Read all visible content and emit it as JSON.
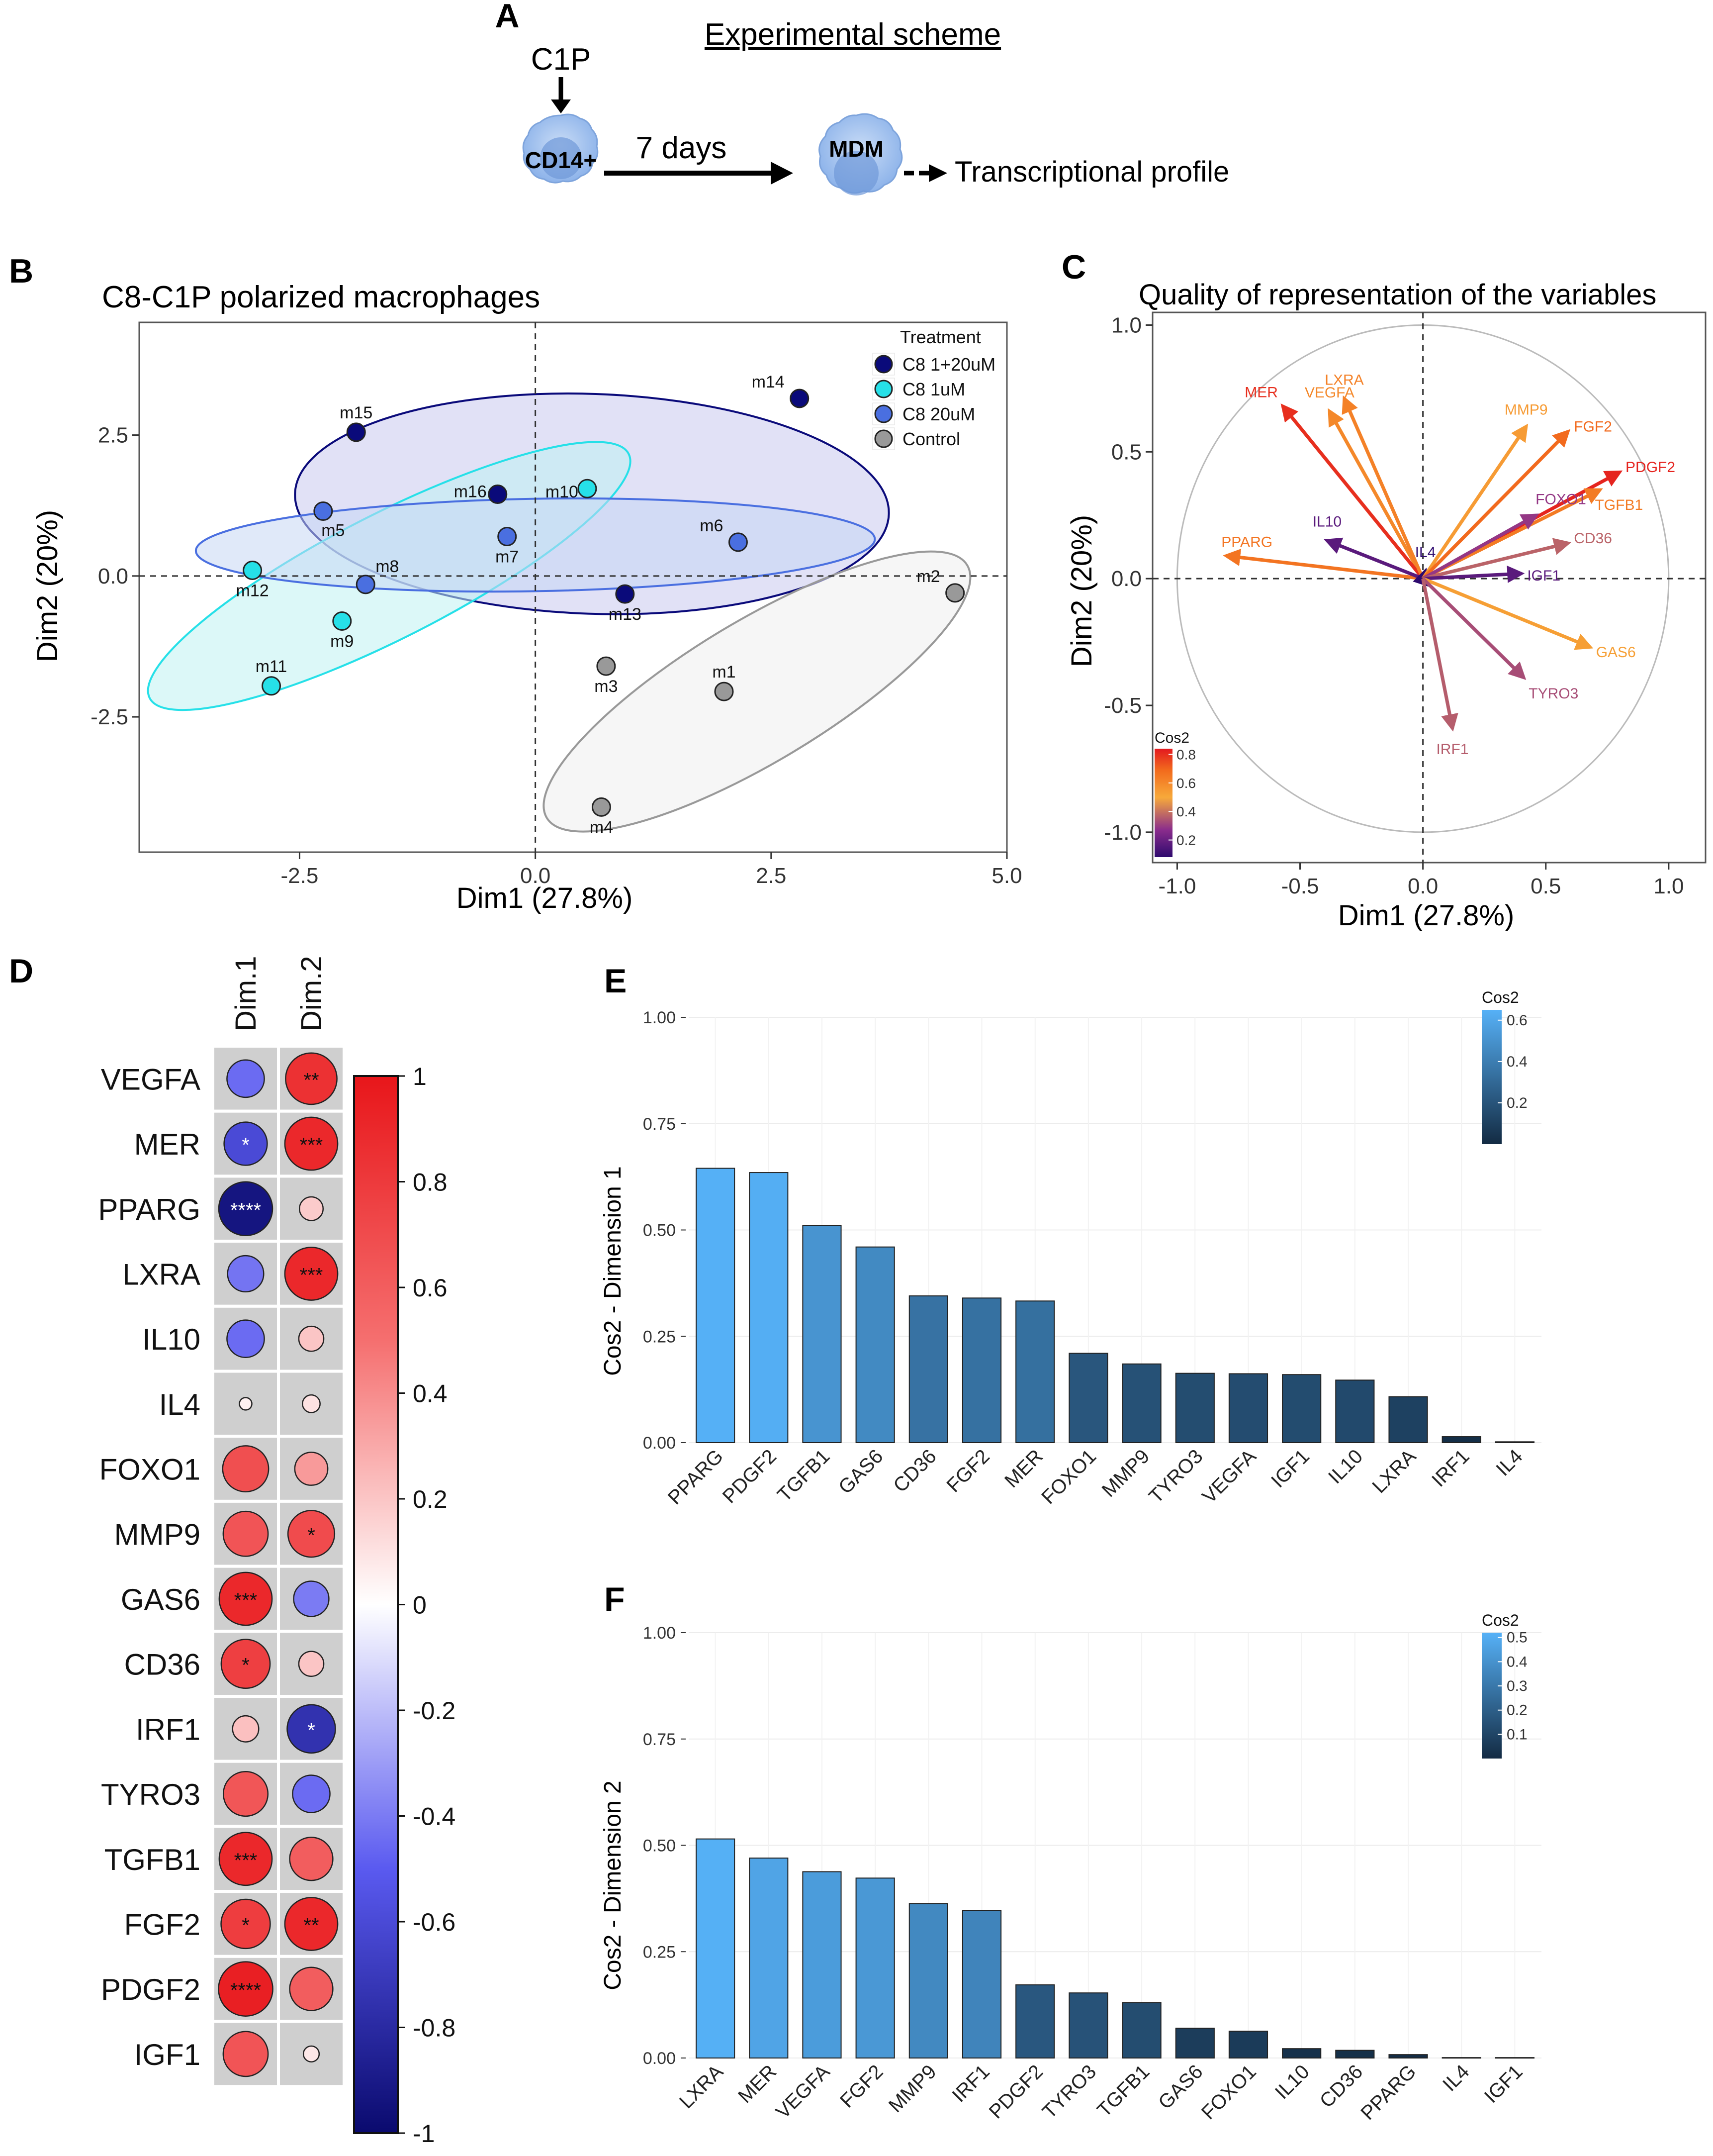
{
  "panel_letters": {
    "a": "A",
    "b": "B",
    "c": "C",
    "d": "D",
    "e": "E",
    "f": "F"
  },
  "scheme": {
    "title": "Experimental scheme",
    "stimulus": "C1P",
    "cell_start": "CD14+",
    "duration": "7 days",
    "cell_end": "MDM",
    "outcome": "Transcriptional profile"
  },
  "chart_data": [
    {
      "id": "B",
      "type": "scatter",
      "title": "C8-C1P polarized macrophages",
      "xlabel": "Dim1 (27.8%)",
      "ylabel": "Dim2 (20%)",
      "xlim": [
        -4.2,
        5.0
      ],
      "ylim": [
        -4.9,
        4.5
      ],
      "xticks": [
        -2.5,
        0.0,
        2.5,
        5.0
      ],
      "xtick_labels": [
        "-2.5",
        "0.0",
        "2.5",
        "5.0"
      ],
      "yticks": [
        2.5,
        0.0,
        -2.5
      ],
      "ytick_labels": [
        "2.5",
        "0.0",
        "-2.5"
      ],
      "legend_title": "Treatment",
      "groups": [
        {
          "name": "C8 1+20uM",
          "color": "#0a0a7a",
          "fill": "#c8c8ee",
          "ellipse": {
            "cx": 0.6,
            "cy": 1.28,
            "rx": 3.15,
            "ry": 1.95,
            "angle_deg": -2
          },
          "points": [
            {
              "label": "m14",
              "x": 2.8,
              "y": 3.15
            },
            {
              "label": "m15",
              "x": -1.9,
              "y": 2.55
            },
            {
              "label": "m16",
              "x": -0.4,
              "y": 1.45
            },
            {
              "label": "m13",
              "x": 0.95,
              "y": -0.32
            }
          ]
        },
        {
          "name": "C8 1uM",
          "color": "#26e0e8",
          "fill": "#bff3f3",
          "ellipse": {
            "cx": -1.55,
            "cy": 0.0,
            "rx": 2.85,
            "ry": 1.1,
            "angle_deg": 27
          },
          "points": [
            {
              "label": "m10",
              "x": 0.55,
              "y": 1.55
            },
            {
              "label": "m12",
              "x": -3.0,
              "y": 0.1
            },
            {
              "label": "m9",
              "x": -2.05,
              "y": -0.8
            },
            {
              "label": "m11",
              "x": -2.8,
              "y": -1.95
            }
          ]
        },
        {
          "name": "C8 20uM",
          "color": "#4a6fe0",
          "fill": "#c7d7f4",
          "ellipse": {
            "cx": 0.0,
            "cy": 0.55,
            "rx": 3.6,
            "ry": 0.82,
            "angle_deg": 1
          },
          "points": [
            {
              "label": "m5",
              "x": -2.25,
              "y": 1.15
            },
            {
              "label": "m7",
              "x": -0.3,
              "y": 0.7
            },
            {
              "label": "m6",
              "x": 2.15,
              "y": 0.6
            },
            {
              "label": "m8",
              "x": -1.8,
              "y": -0.15
            }
          ]
        },
        {
          "name": "Control",
          "color": "#999999",
          "fill": "#eeeeee",
          "ellipse": {
            "cx": 2.35,
            "cy": -2.05,
            "rx": 2.6,
            "ry": 1.25,
            "angle_deg": 31
          },
          "points": [
            {
              "label": "m2",
              "x": 4.45,
              "y": -0.3
            },
            {
              "label": "m3",
              "x": 0.75,
              "y": -1.6
            },
            {
              "label": "m1",
              "x": 2.0,
              "y": -2.05
            },
            {
              "label": "m4",
              "x": 0.7,
              "y": -4.1
            }
          ]
        }
      ]
    },
    {
      "id": "C",
      "type": "vector",
      "title": "Quality of representation of the variables",
      "xlabel": "Dim1 (27.8%)",
      "ylabel": "Dim2 (20%)",
      "xlim": [
        -1.1,
        1.15
      ],
      "ylim": [
        -1.12,
        1.05
      ],
      "xticks": [
        -1.0,
        -0.5,
        0.0,
        0.5,
        1.0
      ],
      "xtick_labels": [
        "-1.0",
        "-0.5",
        "0.0",
        "0.5",
        "1.0"
      ],
      "yticks": [
        1.0,
        0.5,
        0.0,
        -0.5,
        -1.0
      ],
      "ytick_labels": [
        "1.0",
        "0.5",
        "0.0",
        "-0.5",
        "-1.0"
      ],
      "colorbar": {
        "title": "Cos2",
        "ticks": [
          0.8,
          0.6,
          0.4,
          0.2
        ],
        "tick_labels": [
          "0.8",
          "0.6",
          "0.4",
          "0.2"
        ],
        "range": [
          0.08,
          0.84
        ]
      },
      "vectors": [
        {
          "label": "VEGFA",
          "x": -0.38,
          "y": 0.66,
          "cos2": 0.6
        },
        {
          "label": "MER",
          "x": -0.57,
          "y": 0.68,
          "cos2": 0.8
        },
        {
          "label": "LXRA",
          "x": -0.32,
          "y": 0.71,
          "cos2": 0.62
        },
        {
          "label": "PPARG",
          "x": -0.8,
          "y": 0.09,
          "cos2": 0.66
        },
        {
          "label": "IL10",
          "x": -0.39,
          "y": 0.15,
          "cos2": 0.17
        },
        {
          "label": "IL4",
          "x": 0.01,
          "y": 0.03,
          "cos2": 0.08
        },
        {
          "label": "MMP9",
          "x": 0.42,
          "y": 0.6,
          "cos2": 0.54
        },
        {
          "label": "FGF2",
          "x": 0.59,
          "y": 0.58,
          "cos2": 0.69
        },
        {
          "label": "PDGF2",
          "x": 0.8,
          "y": 0.42,
          "cos2": 0.82
        },
        {
          "label": "TGFB1",
          "x": 0.72,
          "y": 0.35,
          "cos2": 0.64
        },
        {
          "label": "FOXO1",
          "x": 0.46,
          "y": 0.25,
          "cos2": 0.29
        },
        {
          "label": "CD36",
          "x": 0.59,
          "y": 0.14,
          "cos2": 0.37
        },
        {
          "label": "IGF1",
          "x": 0.4,
          "y": 0.02,
          "cos2": 0.17
        },
        {
          "label": "GAS6",
          "x": 0.68,
          "y": -0.27,
          "cos2": 0.53
        },
        {
          "label": "TYRO3",
          "x": 0.41,
          "y": -0.39,
          "cos2": 0.33
        },
        {
          "label": "IRF1",
          "x": 0.12,
          "y": -0.59,
          "cos2": 0.36
        }
      ]
    },
    {
      "id": "D",
      "type": "heatmap",
      "columns": [
        "Dim.1",
        "Dim.2"
      ],
      "rows": [
        "VEGFA",
        "MER",
        "PPARG",
        "LXRA",
        "IL10",
        "IL4",
        "FOXO1",
        "MMP9",
        "GAS6",
        "CD36",
        "IRF1",
        "TYRO3",
        "TGFB1",
        "FGF2",
        "PDGF2",
        "IGF1"
      ],
      "values": [
        [
          -0.45,
          0.85
        ],
        [
          -0.6,
          0.9
        ],
        [
          -0.93,
          0.18
        ],
        [
          -0.42,
          0.9
        ],
        [
          -0.45,
          0.2
        ],
        [
          0.05,
          0.1
        ],
        [
          0.68,
          0.35
        ],
        [
          0.65,
          0.7
        ],
        [
          0.9,
          -0.4
        ],
        [
          0.77,
          0.2
        ],
        [
          0.22,
          -0.75
        ],
        [
          0.64,
          -0.45
        ],
        [
          0.9,
          0.6
        ],
        [
          0.78,
          0.9
        ],
        [
          0.95,
          0.6
        ],
        [
          0.65,
          0.08
        ]
      ],
      "stars": [
        [
          "",
          "**"
        ],
        [
          "*",
          "***"
        ],
        [
          "****",
          ""
        ],
        [
          "",
          "***"
        ],
        [
          "",
          ""
        ],
        [
          "",
          ""
        ],
        [
          "",
          ""
        ],
        [
          "",
          "*"
        ],
        [
          "***",
          ""
        ],
        [
          "*",
          ""
        ],
        [
          "",
          "*"
        ],
        [
          "",
          ""
        ],
        [
          "***",
          ""
        ],
        [
          "*",
          "**"
        ],
        [
          "****",
          ""
        ],
        [
          "",
          ""
        ]
      ],
      "colorbar": {
        "ticks": [
          1,
          0.8,
          0.6,
          0.4,
          0.2,
          0,
          -0.2,
          -0.4,
          -0.6,
          -0.8,
          -1
        ],
        "tick_labels": [
          "1",
          "0.8",
          "0.6",
          "0.4",
          "0.2",
          "0",
          "-0.2",
          "-0.4",
          "-0.6",
          "-0.8",
          "-1"
        ]
      }
    },
    {
      "id": "E",
      "type": "bar",
      "ylabel": "Cos2 - Dimension 1",
      "ylim": [
        0,
        1.0
      ],
      "yticks": [
        0,
        0.25,
        0.5,
        0.75,
        1.0
      ],
      "ytick_labels": [
        "0.00",
        "0.25",
        "0.50",
        "0.75",
        "1.00"
      ],
      "categories": [
        "PPARG",
        "PDGF2",
        "TGFB1",
        "GAS6",
        "CD36",
        "FGF2",
        "MER",
        "FOXO1",
        "MMP9",
        "TYRO3",
        "VEGFA",
        "IGF1",
        "IL10",
        "LXRA",
        "IRF1",
        "IL4"
      ],
      "values": [
        0.645,
        0.635,
        0.51,
        0.46,
        0.345,
        0.34,
        0.333,
        0.21,
        0.185,
        0.163,
        0.162,
        0.16,
        0.147,
        0.108,
        0.014,
        0.002
      ],
      "colorbar": {
        "title": "Cos2",
        "ticks": [
          0.6,
          0.4,
          0.2
        ],
        "tick_labels": [
          "0.6",
          "0.4",
          "0.2"
        ],
        "range": [
          0.0,
          0.65
        ]
      }
    },
    {
      "id": "F",
      "type": "bar",
      "ylabel": "Cos2 - Dimension 2",
      "ylim": [
        0,
        1.0
      ],
      "yticks": [
        0,
        0.25,
        0.5,
        0.75,
        1.0
      ],
      "ytick_labels": [
        "0.00",
        "0.25",
        "0.50",
        "0.75",
        "1.00"
      ],
      "categories": [
        "LXRA",
        "MER",
        "VEGFA",
        "FGF2",
        "MMP9",
        "IRF1",
        "PDGF2",
        "TYRO3",
        "TGFB1",
        "GAS6",
        "FOXO1",
        "IL10",
        "CD36",
        "PPARG",
        "IL4",
        "IGF1"
      ],
      "values": [
        0.515,
        0.47,
        0.438,
        0.423,
        0.363,
        0.347,
        0.172,
        0.153,
        0.13,
        0.07,
        0.063,
        0.022,
        0.018,
        0.008,
        0.001,
        0.001
      ],
      "colorbar": {
        "title": "Cos2",
        "ticks": [
          0.5,
          0.4,
          0.3,
          0.2,
          0.1
        ],
        "tick_labels": [
          "0.5",
          "0.4",
          "0.3",
          "0.2",
          "0.1"
        ],
        "range": [
          0.0,
          0.52
        ]
      }
    }
  ]
}
